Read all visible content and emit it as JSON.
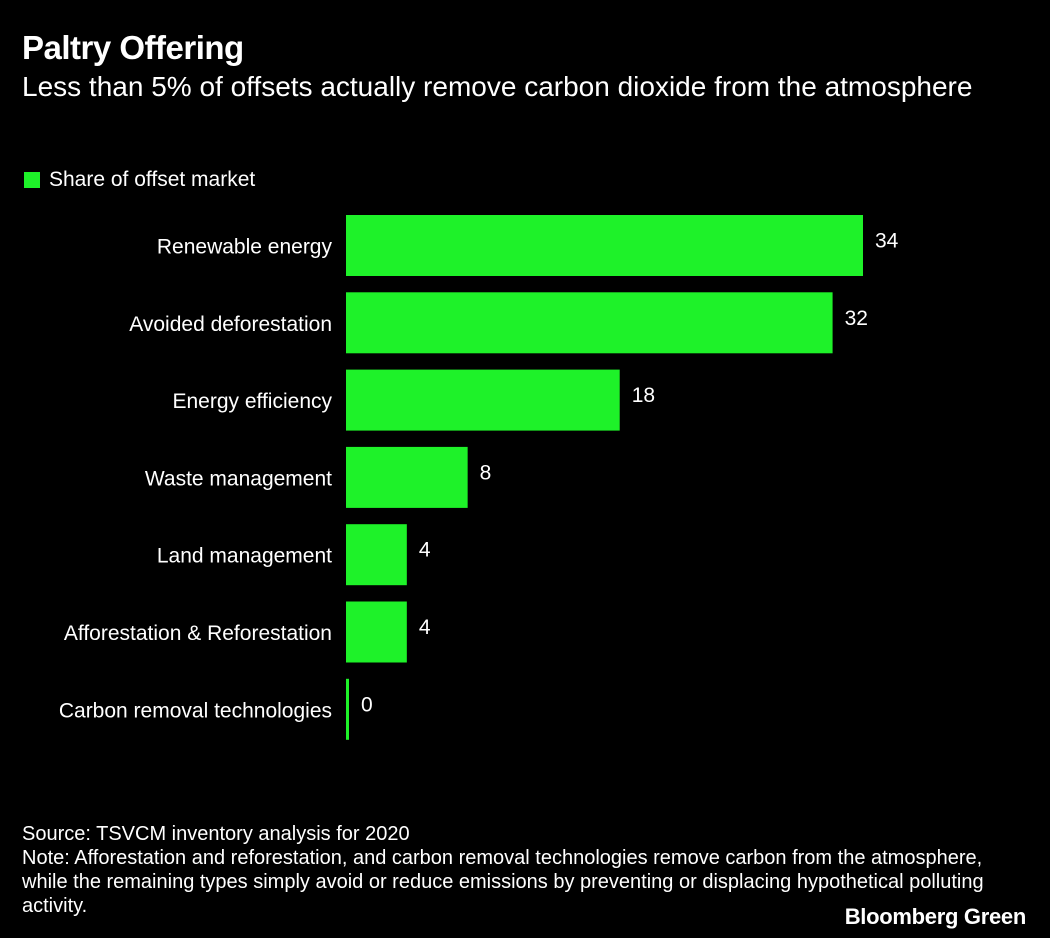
{
  "chart_data": {
    "type": "bar",
    "orientation": "horizontal",
    "title": "Paltry Offering",
    "subtitle": "Less than 5% of offsets actually remove carbon dioxide from the atmosphere",
    "legend": "Share of offset market",
    "legend_position": "top-left",
    "categories": [
      "Renewable energy",
      "Avoided deforestation",
      "Energy efficiency",
      "Waste management",
      "Land management",
      "Afforestation & Reforestation",
      "Carbon removal technologies"
    ],
    "values": [
      34,
      32,
      18,
      8,
      4,
      4,
      0
    ],
    "value_labels": [
      "34",
      "32",
      "18",
      "8",
      "4",
      "4",
      "0"
    ],
    "xlim": [
      0,
      34
    ],
    "grid": false,
    "xlabel": "",
    "ylabel": ""
  },
  "colors": {
    "background": "#000000",
    "bar": "#1ef229",
    "text": "#ffffff"
  },
  "footer": {
    "source": "Source: TSVCM inventory analysis for 2020",
    "note": "Note: Afforestation and reforestation, and carbon removal technologies remove carbon from the atmosphere, while the remaining types simply avoid or reduce emissions by preventing or displacing hypothetical polluting activity."
  },
  "brand": "Bloomberg Green"
}
